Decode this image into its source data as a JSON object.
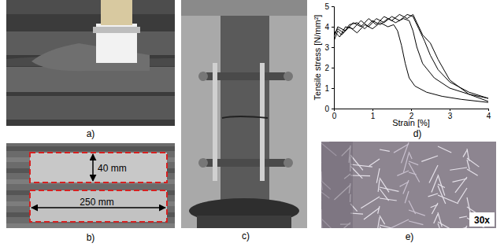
{
  "chart_data": {
    "type": "line",
    "x_label": "Strain [%]",
    "y_label": "Tensile stress [N/mm²]",
    "xlim": [
      0,
      4
    ],
    "ylim": [
      0,
      5
    ],
    "xticks": [
      0,
      1,
      2,
      3,
      4
    ],
    "yticks": [
      0,
      1,
      2,
      3,
      4,
      5
    ],
    "grid": false,
    "series": [
      {
        "color": "#000000",
        "x": [
          0,
          0.1,
          0.2,
          0.4,
          0.6,
          0.8,
          1.0,
          1.2,
          1.4,
          1.55,
          1.65,
          1.75,
          1.85,
          1.95,
          2.1,
          2.4,
          2.8,
          3.3,
          4.0
        ],
        "values": [
          3.3,
          3.8,
          3.6,
          4.0,
          3.7,
          4.1,
          3.9,
          4.2,
          4.0,
          4.1,
          3.8,
          3.1,
          2.2,
          1.5,
          1.1,
          0.8,
          0.6,
          0.45,
          0.3
        ]
      },
      {
        "color": "#000000",
        "x": [
          0,
          0.1,
          0.25,
          0.4,
          0.6,
          0.8,
          1.0,
          1.2,
          1.4,
          1.6,
          1.8,
          1.95,
          2.05,
          2.15,
          2.3,
          2.6,
          3.0,
          3.5,
          4.0
        ],
        "values": [
          3.6,
          3.9,
          3.7,
          4.1,
          4.2,
          3.9,
          4.3,
          4.1,
          4.4,
          4.2,
          4.4,
          4.3,
          3.8,
          3.0,
          2.2,
          1.5,
          1.0,
          0.7,
          0.5
        ]
      },
      {
        "color": "#000000",
        "x": [
          0,
          0.15,
          0.3,
          0.5,
          0.7,
          0.9,
          1.1,
          1.3,
          1.5,
          1.7,
          1.9,
          2.05,
          2.2,
          2.35,
          2.5,
          2.7,
          3.0,
          3.5,
          4.0
        ],
        "values": [
          3.8,
          3.5,
          4.0,
          3.9,
          4.3,
          4.0,
          4.4,
          4.2,
          4.5,
          4.3,
          4.6,
          4.5,
          3.9,
          3.3,
          2.6,
          1.9,
          1.3,
          0.8,
          0.5
        ]
      },
      {
        "color": "#000000",
        "x": [
          0,
          0.1,
          0.3,
          0.5,
          0.7,
          0.9,
          1.1,
          1.3,
          1.5,
          1.7,
          1.9,
          2.05,
          2.15,
          2.3,
          2.5,
          2.7,
          3.0,
          3.5,
          4.0
        ],
        "values": [
          3.5,
          4.0,
          3.8,
          4.2,
          4.0,
          4.4,
          4.1,
          4.5,
          4.3,
          4.6,
          4.4,
          4.6,
          4.2,
          3.6,
          3.2,
          2.4,
          1.4,
          0.7,
          0.35
        ]
      }
    ]
  },
  "panels": [
    {
      "label": "a)"
    },
    {
      "label": "b)",
      "annotations": [
        "40 mm",
        "250 mm"
      ]
    },
    {
      "label": "c)"
    },
    {
      "label": "d)"
    },
    {
      "label": "e)",
      "annotations": [
        "30x"
      ]
    }
  ]
}
